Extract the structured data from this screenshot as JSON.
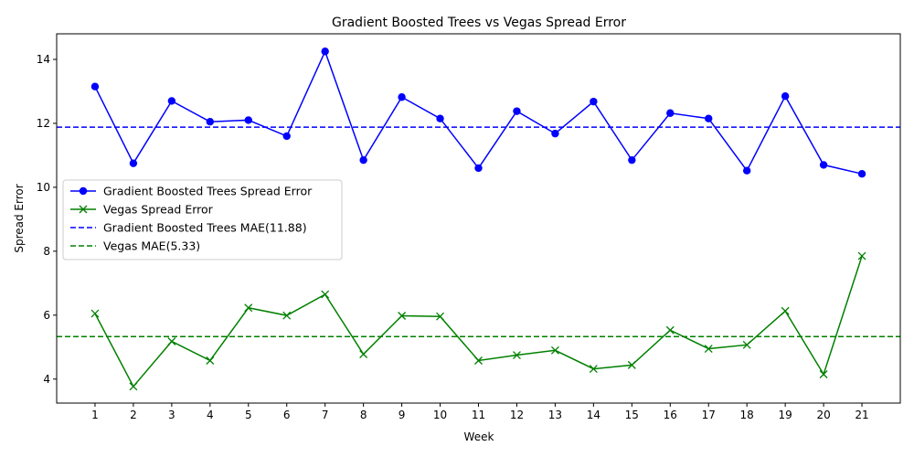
{
  "chart_data": {
    "type": "line",
    "title": "Gradient Boosted Trees vs Vegas Spread Error",
    "xlabel": "Week",
    "ylabel": "Spread Error",
    "x": [
      1,
      2,
      3,
      4,
      5,
      6,
      7,
      8,
      9,
      10,
      11,
      12,
      13,
      14,
      15,
      16,
      17,
      18,
      19,
      20,
      21
    ],
    "xlim": [
      0,
      22
    ],
    "ylim": [
      3.25,
      14.8
    ],
    "yticks": [
      4,
      6,
      8,
      10,
      12,
      14
    ],
    "grid": false,
    "legend_position": "center-left",
    "series": [
      {
        "name": "Gradient Boosted Trees Spread Error",
        "color": "#0000ff",
        "marker": "circle",
        "values": [
          13.15,
          10.75,
          12.7,
          12.05,
          12.1,
          11.6,
          14.25,
          10.85,
          12.82,
          12.15,
          10.6,
          12.38,
          11.68,
          12.68,
          10.85,
          12.32,
          12.15,
          10.52,
          12.85,
          10.7,
          10.42
        ]
      },
      {
        "name": "Vegas Spread Error",
        "color": "#008000",
        "marker": "x",
        "values": [
          6.05,
          3.77,
          5.18,
          4.58,
          6.23,
          5.99,
          6.65,
          4.78,
          5.98,
          5.96,
          4.58,
          4.75,
          4.9,
          4.32,
          4.44,
          5.53,
          4.95,
          5.07,
          6.13,
          4.15,
          7.85
        ]
      }
    ],
    "reference_lines": [
      {
        "name": "Gradient Boosted Trees MAE(11.88)",
        "value": 11.88,
        "color": "#0000ff",
        "style": "dashed"
      },
      {
        "name": "Vegas MAE(5.33)",
        "value": 5.33,
        "color": "#008000",
        "style": "dashed"
      }
    ]
  }
}
